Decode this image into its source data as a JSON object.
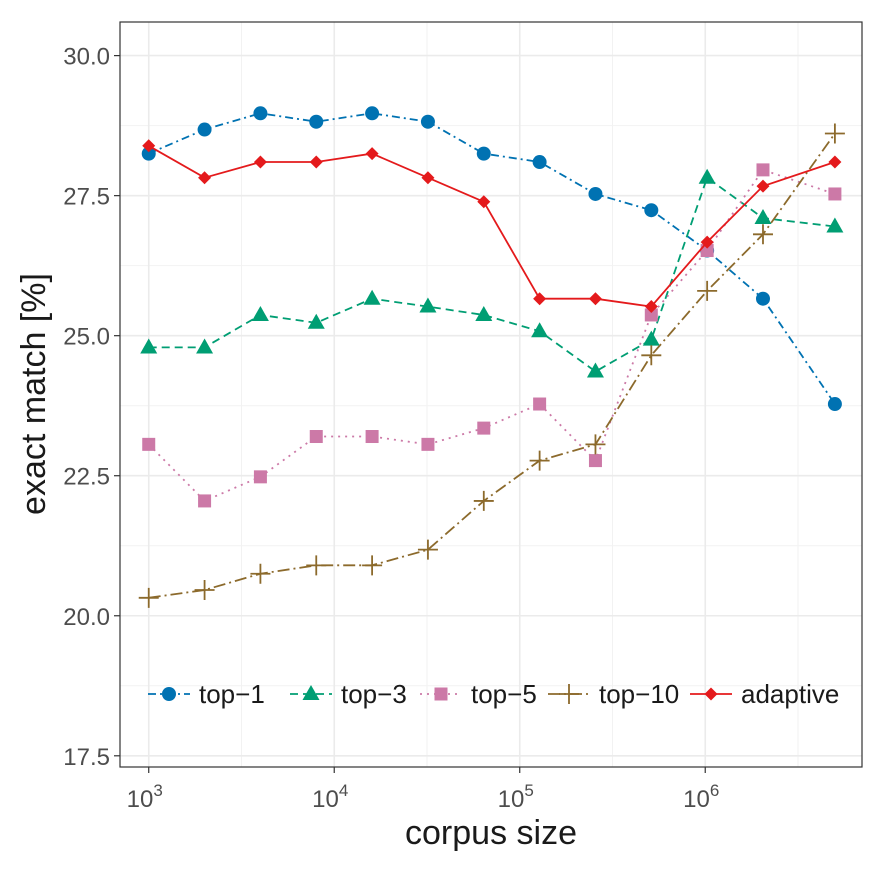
{
  "chart_data": {
    "type": "line",
    "title": "",
    "xlabel": "corpus size",
    "ylabel": "exact match [%]",
    "xscale": "log10",
    "xlim": [
      700,
      7000000
    ],
    "ylim": [
      17.3,
      30.6
    ],
    "grid": true,
    "legend_position": "bottom-inside",
    "x_ticks": [
      {
        "value": 1000,
        "base": "10",
        "exp": "3"
      },
      {
        "value": 10000,
        "base": "10",
        "exp": "4"
      },
      {
        "value": 100000,
        "base": "10",
        "exp": "5"
      },
      {
        "value": 1000000,
        "base": "10",
        "exp": "6"
      }
    ],
    "y_ticks": [
      {
        "value": 17.5,
        "label": "17.5"
      },
      {
        "value": 20.0,
        "label": "20.0"
      },
      {
        "value": 22.5,
        "label": "22.5"
      },
      {
        "value": 25.0,
        "label": "25.0"
      },
      {
        "value": 27.5,
        "label": "27.5"
      },
      {
        "value": 30.0,
        "label": "30.0"
      }
    ],
    "x": [
      1000,
      2000,
      4000,
      8000,
      16000,
      32000,
      64000,
      128000,
      256000,
      512000,
      1024000,
      2048000,
      5000000
    ],
    "series": [
      {
        "name": "top−1",
        "color": "#0072B2",
        "marker": "circle",
        "dash": "dotdash",
        "values": [
          28.25,
          28.68,
          28.97,
          28.82,
          28.97,
          28.82,
          28.25,
          28.1,
          27.53,
          27.24,
          26.52,
          25.66,
          23.78
        ]
      },
      {
        "name": "top−3",
        "color": "#009E73",
        "marker": "triangle",
        "dash": "dashed",
        "values": [
          24.79,
          24.79,
          25.37,
          25.23,
          25.66,
          25.52,
          25.37,
          25.08,
          24.36,
          24.93,
          27.82,
          27.1,
          26.95
        ]
      },
      {
        "name": "top−5",
        "color": "#CC79A7",
        "marker": "square",
        "dash": "dotted",
        "values": [
          23.06,
          22.05,
          22.48,
          23.2,
          23.2,
          23.06,
          23.35,
          23.78,
          22.77,
          25.37,
          26.52,
          27.96,
          27.53
        ]
      },
      {
        "name": "top−10",
        "color": "#8C6A2C",
        "marker": "plus",
        "dash": "longdash",
        "values": [
          20.32,
          20.46,
          20.75,
          20.9,
          20.9,
          21.18,
          22.05,
          22.77,
          23.06,
          24.65,
          25.8,
          26.81,
          28.61
        ]
      },
      {
        "name": "adaptive",
        "color": "#E41A1C",
        "marker": "diamond",
        "dash": "solid",
        "values": [
          28.39,
          27.82,
          28.1,
          28.1,
          28.25,
          27.82,
          27.39,
          25.66,
          25.66,
          25.52,
          26.67,
          27.67,
          28.1
        ]
      }
    ]
  }
}
